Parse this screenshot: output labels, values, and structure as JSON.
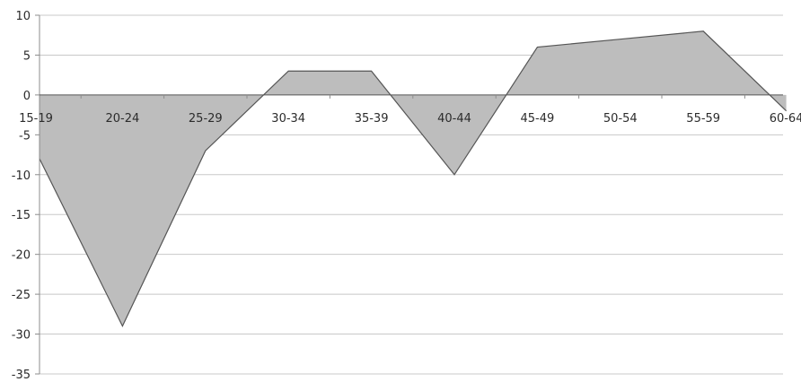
{
  "chart_data": {
    "type": "area",
    "categories": [
      "15-19",
      "20-24",
      "25-29",
      "30-34",
      "35-39",
      "40-44",
      "45-49",
      "50-54",
      "55-59",
      "60-64"
    ],
    "values": [
      -8,
      -29,
      -7,
      3,
      3,
      -10,
      6,
      7,
      8,
      -2
    ],
    "ylim": [
      -35,
      10
    ],
    "yticks": [
      10,
      5,
      0,
      -5,
      -10,
      -15,
      -20,
      -25,
      -30,
      -35
    ],
    "grid": true,
    "colors": {
      "fill": "#bdbdbd",
      "line": "#555555",
      "grid": "#c8c8c8",
      "axis": "#8c8c8c",
      "text": "#2b2b2b"
    }
  }
}
